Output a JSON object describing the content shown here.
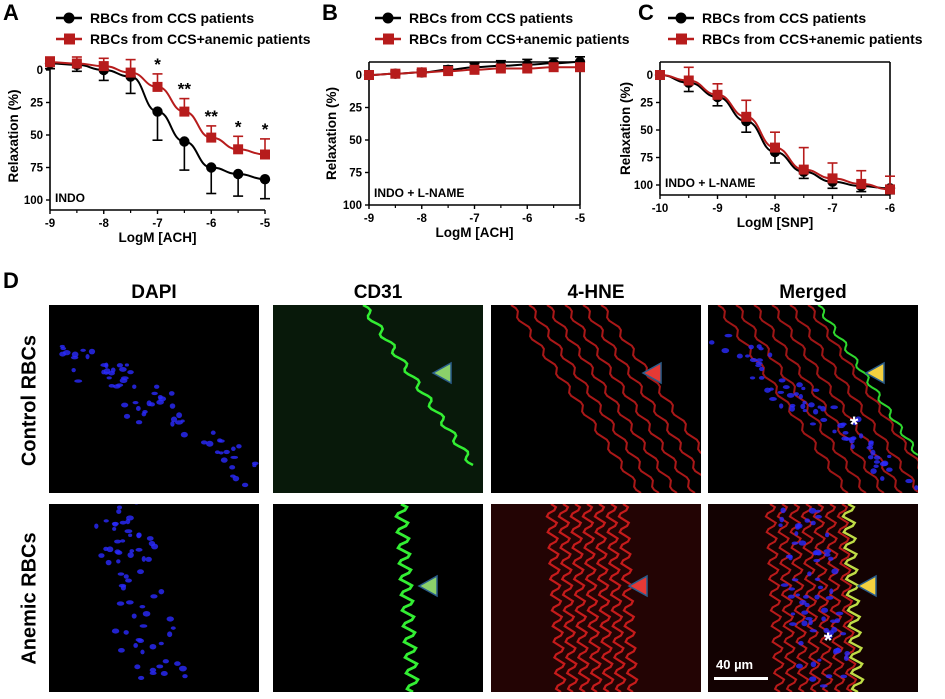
{
  "panels": {
    "A": {
      "letter": "A"
    },
    "B": {
      "letter": "B"
    },
    "C": {
      "letter": "C"
    },
    "D": {
      "letter": "D"
    }
  },
  "legend": {
    "ccs": "RBCs from CCS patients",
    "anemic": "RBCs from CCS+anemic patients"
  },
  "colors": {
    "ccs": "#000000",
    "anemic": "#b71c1c",
    "dapi": "#2a2aff",
    "cd31": "#33ee33",
    "hne": "#e32020",
    "arrow_green": "#8bd06a",
    "arrow_red": "#e53935",
    "arrow_yellow": "#f4d03f"
  },
  "chart_data": [
    {
      "id": "A",
      "type": "line",
      "condition": "INDO",
      "xlabel": "LogM [ACH]",
      "ylabel": "Relaxation (%)",
      "xlim": [
        -9,
        -5
      ],
      "ylim": [
        0,
        100
      ],
      "y_inverted": true,
      "xticks": [
        -9,
        -8,
        -7,
        -6,
        -5
      ],
      "yticks": [
        0,
        25,
        50,
        75,
        100
      ],
      "series": [
        {
          "name": "RBCs from CCS patients",
          "key": "ccs",
          "x": [
            -9,
            -8.5,
            -8,
            -7.5,
            -7,
            -6.5,
            -6,
            -5.5,
            -5
          ],
          "y": [
            -5,
            -4,
            0,
            5,
            32,
            55,
            75,
            80,
            84
          ],
          "err": [
            4,
            5,
            8,
            13,
            22,
            22,
            20,
            17,
            15
          ]
        },
        {
          "name": "RBCs from CCS+anemic patients",
          "key": "anemic",
          "x": [
            -9,
            -8.5,
            -8,
            -7.5,
            -7,
            -6.5,
            -6,
            -5.5,
            -5
          ],
          "y": [
            -6,
            -5,
            -3,
            2,
            13,
            32,
            52,
            61,
            65
          ],
          "err": [
            4,
            5,
            6,
            10,
            10,
            10,
            9,
            10,
            12
          ]
        }
      ],
      "annotations": [
        {
          "x": -7,
          "text": "*"
        },
        {
          "x": -6.5,
          "text": "**"
        },
        {
          "x": -6,
          "text": "**"
        },
        {
          "x": -5.5,
          "text": "*"
        },
        {
          "x": -5,
          "text": "*"
        }
      ]
    },
    {
      "id": "B",
      "type": "line",
      "condition": "INDO + L-NAME",
      "xlabel": "LogM [ACH]",
      "ylabel": "Relaxation (%)",
      "xlim": [
        -9,
        -5
      ],
      "ylim": [
        0,
        100
      ],
      "y_inverted": true,
      "xticks": [
        -9,
        -8,
        -7,
        -6,
        -5
      ],
      "yticks": [
        0,
        25,
        50,
        75,
        100
      ],
      "series": [
        {
          "name": "RBCs from CCS patients",
          "key": "ccs",
          "x": [
            -9,
            -8.5,
            -8,
            -7.5,
            -7,
            -6.5,
            -6,
            -5.5,
            -5
          ],
          "y": [
            0,
            -1,
            -2,
            -4,
            -6,
            -7,
            -8,
            -9,
            -10
          ],
          "err": [
            1,
            2,
            2,
            3,
            3,
            4,
            4,
            4,
            4
          ]
        },
        {
          "name": "RBCs from CCS+anemic patients",
          "key": "anemic",
          "x": [
            -9,
            -8.5,
            -8,
            -7.5,
            -7,
            -6.5,
            -6,
            -5.5,
            -5
          ],
          "y": [
            0,
            -1,
            -2,
            -3,
            -4,
            -5,
            -5,
            -6,
            -6
          ],
          "err": [
            1,
            2,
            2,
            3,
            3,
            3,
            3,
            3,
            3
          ]
        }
      ]
    },
    {
      "id": "C",
      "type": "line",
      "condition": "INDO + L-NAME",
      "xlabel": "LogM [SNP]",
      "ylabel": "Relaxation (%)",
      "xlim": [
        -10,
        -6
      ],
      "ylim": [
        0,
        100
      ],
      "y_inverted": true,
      "xticks": [
        -10,
        -9,
        -8,
        -7,
        -6
      ],
      "yticks": [
        0,
        25,
        50,
        75,
        100
      ],
      "series": [
        {
          "name": "RBCs from CCS patients",
          "key": "ccs",
          "x": [
            -10,
            -9.5,
            -9,
            -8.5,
            -8,
            -7.5,
            -7,
            -6.5,
            -6
          ],
          "y": [
            0,
            7,
            20,
            42,
            70,
            88,
            97,
            101,
            103
          ],
          "err": [
            1,
            8,
            8,
            10,
            10,
            6,
            6,
            5,
            5
          ]
        },
        {
          "name": "RBCs from CCS+anemic patients",
          "key": "anemic",
          "x": [
            -10,
            -9.5,
            -9,
            -8.5,
            -8,
            -7.5,
            -7,
            -6.5,
            -6
          ],
          "y": [
            0,
            5,
            18,
            38,
            66,
            86,
            94,
            99,
            104
          ],
          "err": [
            1,
            12,
            10,
            15,
            14,
            20,
            14,
            12,
            12
          ]
        }
      ]
    }
  ],
  "micrographs": {
    "columns": [
      "DAPI",
      "CD31",
      "4-HNE",
      "Merged"
    ],
    "rows": [
      "Control RBCs",
      "Anemic RBCs"
    ],
    "merged_marker": "*",
    "scale_bar": "40 µm"
  }
}
